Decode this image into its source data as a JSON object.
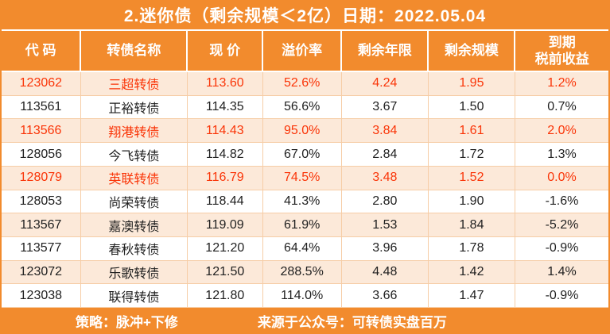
{
  "chart_data": {
    "type": "table",
    "title": "2.迷你债（剩余规模＜2亿）日期：2022.05.04",
    "columns": [
      "代 码",
      "转债名称",
      "现 价",
      "溢价率",
      "剩余年限",
      "剩余规模",
      "到期\n税前收益"
    ],
    "column_keys": [
      "code",
      "name",
      "price",
      "premium_rate",
      "remaining_years",
      "remaining_scale",
      "pretax_yield"
    ],
    "rows": [
      [
        "123062",
        "三超转债",
        "113.60",
        "52.6%",
        "4.24",
        "1.95",
        "1.2%"
      ],
      [
        "113561",
        "正裕转债",
        "114.35",
        "56.6%",
        "3.67",
        "1.50",
        "0.7%"
      ],
      [
        "113566",
        "翔港转债",
        "114.43",
        "95.0%",
        "3.84",
        "1.61",
        "2.0%"
      ],
      [
        "128056",
        "今飞转债",
        "114.82",
        "67.0%",
        "2.84",
        "1.72",
        "1.3%"
      ],
      [
        "128079",
        "英联转债",
        "116.79",
        "74.5%",
        "3.48",
        "1.52",
        "0.0%"
      ],
      [
        "128053",
        "尚荣转债",
        "118.44",
        "41.3%",
        "2.80",
        "1.90",
        "-1.6%"
      ],
      [
        "113567",
        "嘉澳转债",
        "119.09",
        "61.9%",
        "1.53",
        "1.84",
        "-5.2%"
      ],
      [
        "113577",
        "春秋转债",
        "121.20",
        "64.4%",
        "3.96",
        "1.78",
        "-0.9%"
      ],
      [
        "123072",
        "乐歌转债",
        "121.50",
        "288.5%",
        "4.48",
        "1.42",
        "1.4%"
      ],
      [
        "123038",
        "联得转债",
        "121.80",
        "114.0%",
        "3.66",
        "1.47",
        "-0.9%"
      ]
    ],
    "highlighted_row_indexes": [
      0,
      2,
      4
    ],
    "layout": {
      "highlight_meaning": "red-text rows",
      "striping": "odd rows light peach, even rows white"
    }
  },
  "footer": {
    "strategy": "策略：脉冲+下修",
    "source": "来源于公众号：可转债实盘百万"
  },
  "colors": {
    "orange": "#F28B2D",
    "highlight_red": "#FA3508",
    "row_alt": "#FCE9D9",
    "grid_line": "#F6CDA6"
  }
}
